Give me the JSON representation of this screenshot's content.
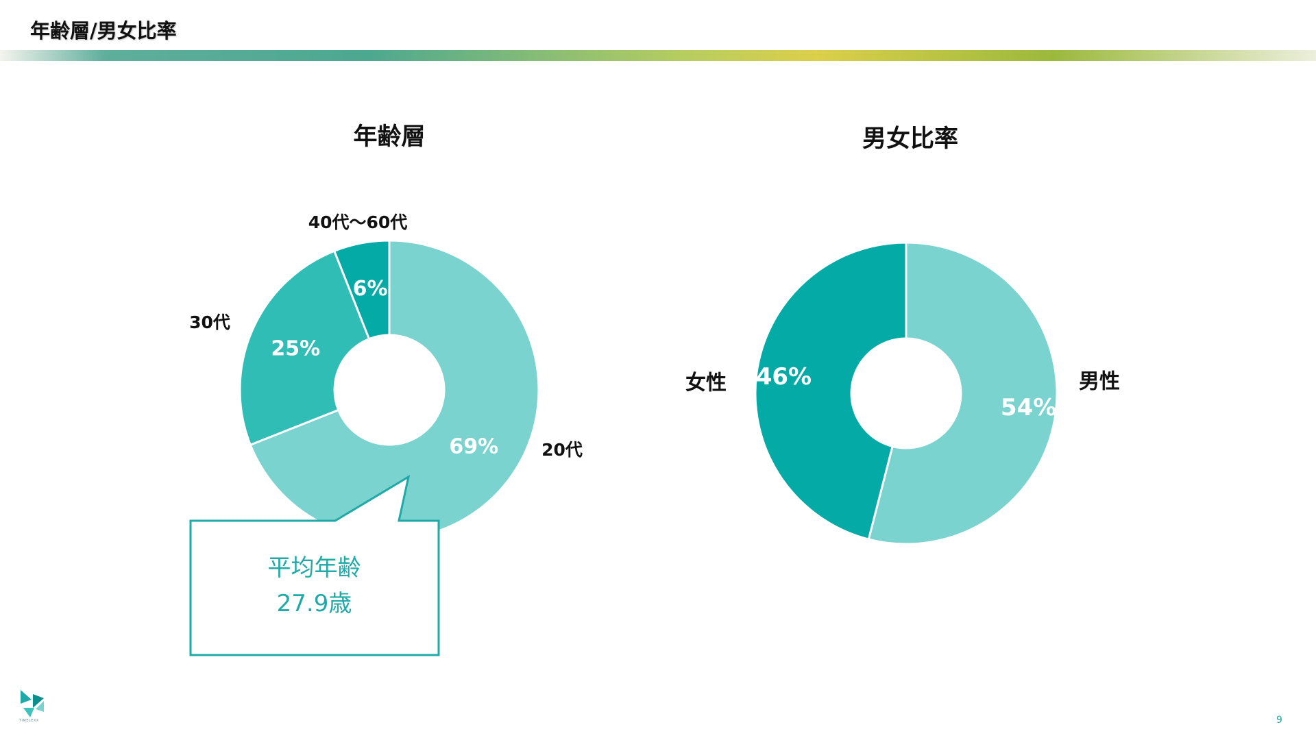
{
  "header": {
    "title": "年齢層/男女比率"
  },
  "colors": {
    "light_teal": "#7ad3cf",
    "mid_teal": "#30bdb6",
    "dark_teal": "#04aba6",
    "callout": "#1fa9a7"
  },
  "chart_data": [
    {
      "type": "pie",
      "title": "年齢層",
      "categories": [
        "20代",
        "30代",
        "40代〜60代"
      ],
      "values": [
        69,
        25,
        6
      ],
      "value_labels": [
        "69%",
        "25%",
        "6%"
      ],
      "colors": [
        "#7ad3cf",
        "#30bdb6",
        "#04aba6"
      ],
      "donut": true
    },
    {
      "type": "pie",
      "title": "男女比率",
      "categories": [
        "男性",
        "女性"
      ],
      "values": [
        54,
        46
      ],
      "value_labels": [
        "54%",
        "46%"
      ],
      "colors": [
        "#7ad3cf",
        "#04aba6"
      ],
      "donut": true
    }
  ],
  "callout": {
    "line1": "平均年齢",
    "line2": "27.9歳"
  },
  "logo": {
    "text": "TIMELEXX",
    "icon": "brand-logo-icon"
  },
  "page": {
    "number": "9"
  }
}
